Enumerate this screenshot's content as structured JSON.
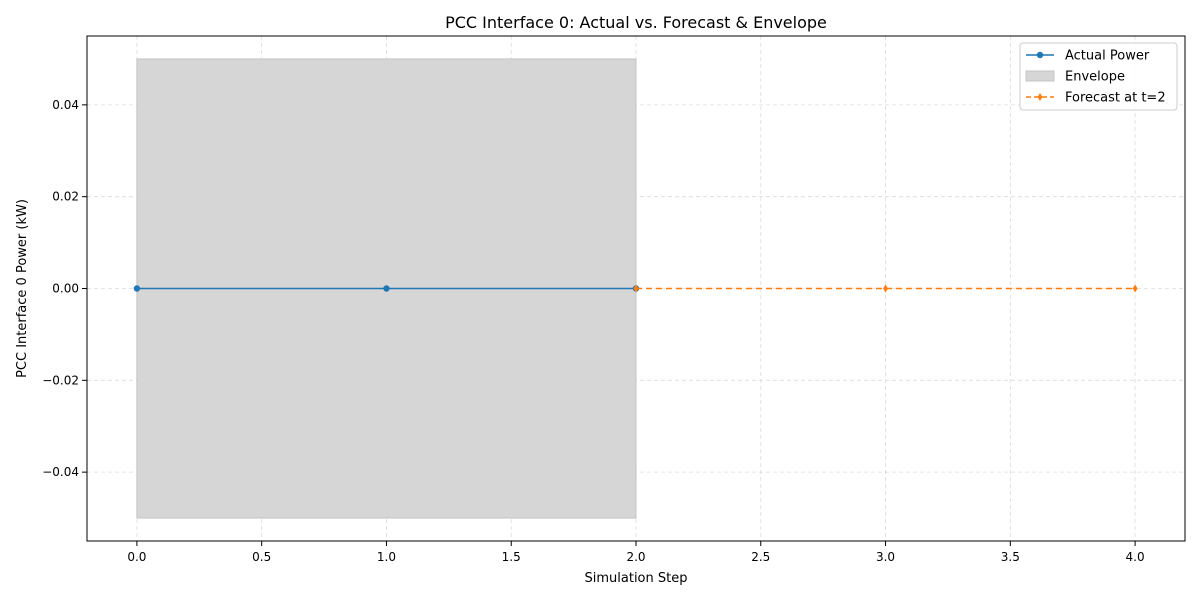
{
  "chart_data": {
    "type": "line",
    "title": "PCC Interface 0: Actual vs. Forecast & Envelope",
    "xlabel": "Simulation Step",
    "ylabel": "PCC Interface 0 Power (kW)",
    "xlim": [
      -0.2,
      4.2
    ],
    "ylim": [
      -0.055,
      0.055
    ],
    "x_ticks": [
      0.0,
      0.5,
      1.0,
      1.5,
      2.0,
      2.5,
      3.0,
      3.5,
      4.0
    ],
    "x_tick_labels": [
      "0.0",
      "0.5",
      "1.0",
      "1.5",
      "2.0",
      "2.5",
      "3.0",
      "3.5",
      "4.0"
    ],
    "y_ticks": [
      0.04,
      0.02,
      0.0,
      -0.02,
      -0.04
    ],
    "y_tick_labels": [
      "0.04",
      "0.02",
      "0.00",
      "−0.02",
      "−0.04"
    ],
    "grid": true,
    "legend_position": "top-right",
    "envelope": {
      "name": "Envelope",
      "x_range": [
        0,
        2
      ],
      "lower": -0.05,
      "upper": 0.05,
      "color": "#d6d6d6"
    },
    "series": [
      {
        "name": "Actual Power",
        "x": [
          0,
          1,
          2
        ],
        "values": [
          0.0,
          0.0,
          0.0
        ],
        "color": "#1f77b4",
        "style": "solid",
        "marker": "circle"
      },
      {
        "name": "Forecast at t=2",
        "x": [
          2,
          3,
          4
        ],
        "values": [
          0.0,
          0.0,
          0.0
        ],
        "color": "#ff7f0e",
        "style": "dashed",
        "marker": "diamond"
      }
    ]
  }
}
